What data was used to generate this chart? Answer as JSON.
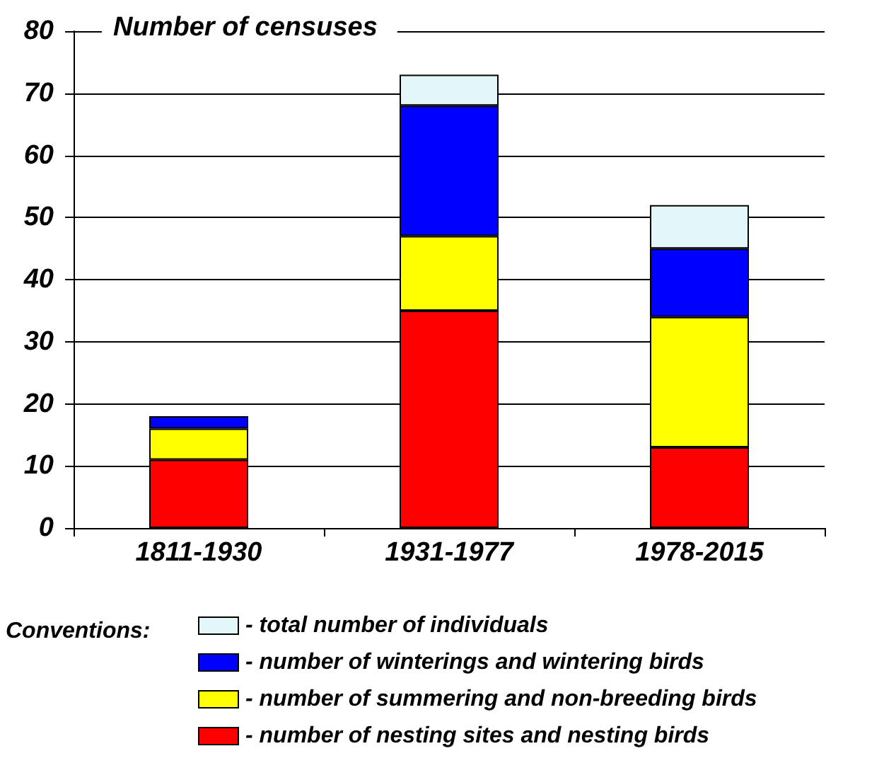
{
  "chart_data": {
    "type": "bar",
    "ylabel": "Number of censuses",
    "legend_title": "Conventions:",
    "categories": [
      "1811-1930",
      "1931-1977",
      "1978-2015"
    ],
    "stacked": true,
    "series": [
      {
        "name": "- number of nesting sites and nesting birds",
        "color": "#ff0000",
        "values": [
          11,
          35,
          13
        ]
      },
      {
        "name": "- number of summering and non-breeding birds",
        "color": "#ffff00",
        "values": [
          5,
          12,
          21
        ]
      },
      {
        "name": "- number of winterings and wintering birds",
        "color": "#0000ff",
        "values": [
          2,
          21,
          11
        ]
      },
      {
        "name": "- total number of individuals",
        "color": "#e4f7f8",
        "values": [
          null,
          5,
          7
        ]
      }
    ],
    "ylim": [
      0,
      80
    ],
    "yticks": [
      0,
      10,
      20,
      30,
      40,
      50,
      60,
      70,
      80
    ],
    "grid": "y",
    "legend": "bottom"
  }
}
